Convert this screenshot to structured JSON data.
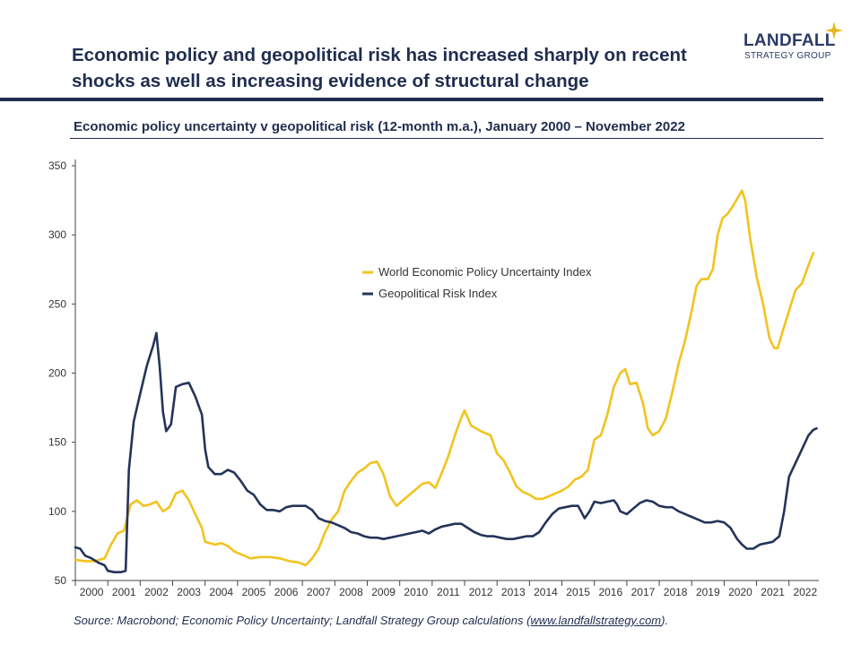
{
  "header": {
    "headline_line1": "Economic policy and geopolitical risk has increased sharply on recent",
    "headline_line2": "shocks as well as increasing evidence of structural change"
  },
  "logo": {
    "name": "LANDFALL",
    "tagline": "STRATEGY GROUP"
  },
  "source": {
    "prefix": "Source: Macrobond; Economic Policy Uncertainty; Landfall Strategy Group calculations (",
    "link": "www.landfallstrategy.com",
    "suffix": ")."
  },
  "colors": {
    "navy": "#1f2d4e",
    "yellow": "#f2c31f",
    "series_navy": "#243459"
  },
  "chart_data": {
    "type": "line",
    "title": "Economic policy uncertainty v geopolitical risk (12-month m.a.), January 2000 – November 2022",
    "xlabel": "",
    "ylabel": "",
    "x_range": [
      2000.0,
      2022.92
    ],
    "ylim": [
      50,
      350
    ],
    "y_ticks": [
      50,
      100,
      150,
      200,
      250,
      300,
      350
    ],
    "x_tick_labels": [
      "2000",
      "2001",
      "2002",
      "2003",
      "2004",
      "2005",
      "2006",
      "2007",
      "2008",
      "2009",
      "2010",
      "2011",
      "2012",
      "2013",
      "2014",
      "2015",
      "2016",
      "2017",
      "2018",
      "2019",
      "2020",
      "2021",
      "2022"
    ],
    "legend_position": "center-right",
    "series": [
      {
        "name": "World Economic Policy Uncertainty Index",
        "color": "#f2c31f",
        "points": [
          [
            2000.0,
            65
          ],
          [
            2000.3,
            64
          ],
          [
            2000.6,
            64
          ],
          [
            2000.9,
            66
          ],
          [
            2001.1,
            76
          ],
          [
            2001.3,
            84
          ],
          [
            2001.5,
            86
          ],
          [
            2001.7,
            105
          ],
          [
            2001.9,
            108
          ],
          [
            2002.1,
            104
          ],
          [
            2002.3,
            105
          ],
          [
            2002.5,
            107
          ],
          [
            2002.7,
            100
          ],
          [
            2002.9,
            103
          ],
          [
            2003.1,
            113
          ],
          [
            2003.3,
            115
          ],
          [
            2003.5,
            108
          ],
          [
            2003.7,
            98
          ],
          [
            2003.9,
            88
          ],
          [
            2004.0,
            78
          ],
          [
            2004.3,
            76
          ],
          [
            2004.5,
            77
          ],
          [
            2004.7,
            75
          ],
          [
            2004.9,
            71
          ],
          [
            2005.1,
            69
          ],
          [
            2005.4,
            66
          ],
          [
            2005.7,
            67
          ],
          [
            2006.0,
            67
          ],
          [
            2006.3,
            66
          ],
          [
            2006.6,
            64
          ],
          [
            2006.9,
            63
          ],
          [
            2007.1,
            61
          ],
          [
            2007.3,
            66
          ],
          [
            2007.5,
            73
          ],
          [
            2007.7,
            85
          ],
          [
            2007.9,
            94
          ],
          [
            2008.1,
            100
          ],
          [
            2008.3,
            115
          ],
          [
            2008.5,
            122
          ],
          [
            2008.7,
            128
          ],
          [
            2008.9,
            131
          ],
          [
            2009.1,
            135
          ],
          [
            2009.3,
            136
          ],
          [
            2009.5,
            127
          ],
          [
            2009.7,
            111
          ],
          [
            2009.9,
            104
          ],
          [
            2010.1,
            108
          ],
          [
            2010.3,
            112
          ],
          [
            2010.5,
            116
          ],
          [
            2010.7,
            120
          ],
          [
            2010.9,
            121
          ],
          [
            2011.1,
            117
          ],
          [
            2011.3,
            128
          ],
          [
            2011.5,
            140
          ],
          [
            2011.7,
            155
          ],
          [
            2011.9,
            168
          ],
          [
            2012.0,
            173
          ],
          [
            2012.2,
            162
          ],
          [
            2012.5,
            158
          ],
          [
            2012.8,
            155
          ],
          [
            2013.0,
            142
          ],
          [
            2013.2,
            137
          ],
          [
            2013.4,
            128
          ],
          [
            2013.6,
            118
          ],
          [
            2013.8,
            114
          ],
          [
            2014.0,
            112
          ],
          [
            2014.2,
            109
          ],
          [
            2014.4,
            109
          ],
          [
            2014.6,
            111
          ],
          [
            2014.8,
            113
          ],
          [
            2015.0,
            115
          ],
          [
            2015.2,
            118
          ],
          [
            2015.4,
            123
          ],
          [
            2015.6,
            125
          ],
          [
            2015.8,
            130
          ],
          [
            2016.0,
            152
          ],
          [
            2016.2,
            155
          ],
          [
            2016.4,
            170
          ],
          [
            2016.6,
            190
          ],
          [
            2016.8,
            200
          ],
          [
            2016.95,
            203
          ],
          [
            2017.1,
            192
          ],
          [
            2017.3,
            193
          ],
          [
            2017.5,
            178
          ],
          [
            2017.65,
            160
          ],
          [
            2017.8,
            155
          ],
          [
            2018.0,
            158
          ],
          [
            2018.2,
            167
          ],
          [
            2018.4,
            186
          ],
          [
            2018.6,
            207
          ],
          [
            2018.8,
            224
          ],
          [
            2019.0,
            245
          ],
          [
            2019.15,
            263
          ],
          [
            2019.3,
            268
          ],
          [
            2019.5,
            268
          ],
          [
            2019.65,
            275
          ],
          [
            2019.8,
            300
          ],
          [
            2019.95,
            312
          ],
          [
            2020.1,
            315
          ],
          [
            2020.25,
            320
          ],
          [
            2020.4,
            326
          ],
          [
            2020.55,
            332
          ],
          [
            2020.65,
            325
          ],
          [
            2020.8,
            298
          ],
          [
            2021.0,
            270
          ],
          [
            2021.2,
            250
          ],
          [
            2021.4,
            225
          ],
          [
            2021.55,
            218
          ],
          [
            2021.65,
            218
          ],
          [
            2021.8,
            230
          ],
          [
            2022.0,
            245
          ],
          [
            2022.2,
            260
          ],
          [
            2022.4,
            265
          ],
          [
            2022.6,
            278
          ],
          [
            2022.75,
            287
          ]
        ]
      },
      {
        "name": "Geopolitical Risk Index",
        "color": "#243459",
        "points": [
          [
            2000.0,
            74
          ],
          [
            2000.15,
            73
          ],
          [
            2000.3,
            68
          ],
          [
            2000.5,
            66
          ],
          [
            2000.7,
            63
          ],
          [
            2000.9,
            61
          ],
          [
            2001.0,
            57
          ],
          [
            2001.2,
            56
          ],
          [
            2001.4,
            56
          ],
          [
            2001.55,
            57
          ],
          [
            2001.65,
            130
          ],
          [
            2001.8,
            165
          ],
          [
            2002.0,
            185
          ],
          [
            2002.2,
            205
          ],
          [
            2002.4,
            220
          ],
          [
            2002.5,
            229
          ],
          [
            2002.6,
            205
          ],
          [
            2002.7,
            172
          ],
          [
            2002.8,
            158
          ],
          [
            2002.95,
            163
          ],
          [
            2003.1,
            190
          ],
          [
            2003.3,
            192
          ],
          [
            2003.5,
            193
          ],
          [
            2003.7,
            183
          ],
          [
            2003.9,
            170
          ],
          [
            2004.0,
            145
          ],
          [
            2004.1,
            132
          ],
          [
            2004.3,
            127
          ],
          [
            2004.5,
            127
          ],
          [
            2004.7,
            130
          ],
          [
            2004.9,
            128
          ],
          [
            2005.1,
            122
          ],
          [
            2005.3,
            115
          ],
          [
            2005.5,
            112
          ],
          [
            2005.7,
            105
          ],
          [
            2005.9,
            101
          ],
          [
            2006.1,
            101
          ],
          [
            2006.3,
            100
          ],
          [
            2006.5,
            103
          ],
          [
            2006.7,
            104
          ],
          [
            2006.9,
            104
          ],
          [
            2007.1,
            104
          ],
          [
            2007.3,
            101
          ],
          [
            2007.5,
            95
          ],
          [
            2007.7,
            93
          ],
          [
            2007.9,
            92
          ],
          [
            2008.1,
            90
          ],
          [
            2008.3,
            88
          ],
          [
            2008.5,
            85
          ],
          [
            2008.7,
            84
          ],
          [
            2008.9,
            82
          ],
          [
            2009.1,
            81
          ],
          [
            2009.3,
            81
          ],
          [
            2009.5,
            80
          ],
          [
            2009.7,
            81
          ],
          [
            2009.9,
            82
          ],
          [
            2010.1,
            83
          ],
          [
            2010.3,
            84
          ],
          [
            2010.5,
            85
          ],
          [
            2010.7,
            86
          ],
          [
            2010.9,
            84
          ],
          [
            2011.1,
            87
          ],
          [
            2011.3,
            89
          ],
          [
            2011.5,
            90
          ],
          [
            2011.7,
            91
          ],
          [
            2011.9,
            91
          ],
          [
            2012.1,
            88
          ],
          [
            2012.3,
            85
          ],
          [
            2012.5,
            83
          ],
          [
            2012.7,
            82
          ],
          [
            2012.9,
            82
          ],
          [
            2013.1,
            81
          ],
          [
            2013.3,
            80
          ],
          [
            2013.5,
            80
          ],
          [
            2013.7,
            81
          ],
          [
            2013.9,
            82
          ],
          [
            2014.1,
            82
          ],
          [
            2014.3,
            85
          ],
          [
            2014.5,
            92
          ],
          [
            2014.7,
            98
          ],
          [
            2014.9,
            102
          ],
          [
            2015.1,
            103
          ],
          [
            2015.3,
            104
          ],
          [
            2015.5,
            104
          ],
          [
            2015.7,
            95
          ],
          [
            2015.85,
            100
          ],
          [
            2016.0,
            107
          ],
          [
            2016.2,
            106
          ],
          [
            2016.4,
            107
          ],
          [
            2016.6,
            108
          ],
          [
            2016.7,
            105
          ],
          [
            2016.8,
            100
          ],
          [
            2017.0,
            98
          ],
          [
            2017.2,
            102
          ],
          [
            2017.4,
            106
          ],
          [
            2017.6,
            108
          ],
          [
            2017.8,
            107
          ],
          [
            2018.0,
            104
          ],
          [
            2018.2,
            103
          ],
          [
            2018.4,
            103
          ],
          [
            2018.6,
            100
          ],
          [
            2018.8,
            98
          ],
          [
            2019.0,
            96
          ],
          [
            2019.2,
            94
          ],
          [
            2019.4,
            92
          ],
          [
            2019.6,
            92
          ],
          [
            2019.8,
            93
          ],
          [
            2020.0,
            92
          ],
          [
            2020.2,
            88
          ],
          [
            2020.4,
            80
          ],
          [
            2020.55,
            76
          ],
          [
            2020.7,
            73
          ],
          [
            2020.9,
            73
          ],
          [
            2021.1,
            76
          ],
          [
            2021.3,
            77
          ],
          [
            2021.5,
            78
          ],
          [
            2021.7,
            82
          ],
          [
            2021.85,
            100
          ],
          [
            2022.0,
            125
          ],
          [
            2022.2,
            135
          ],
          [
            2022.4,
            145
          ],
          [
            2022.6,
            155
          ],
          [
            2022.75,
            159
          ],
          [
            2022.85,
            160
          ]
        ]
      }
    ]
  }
}
